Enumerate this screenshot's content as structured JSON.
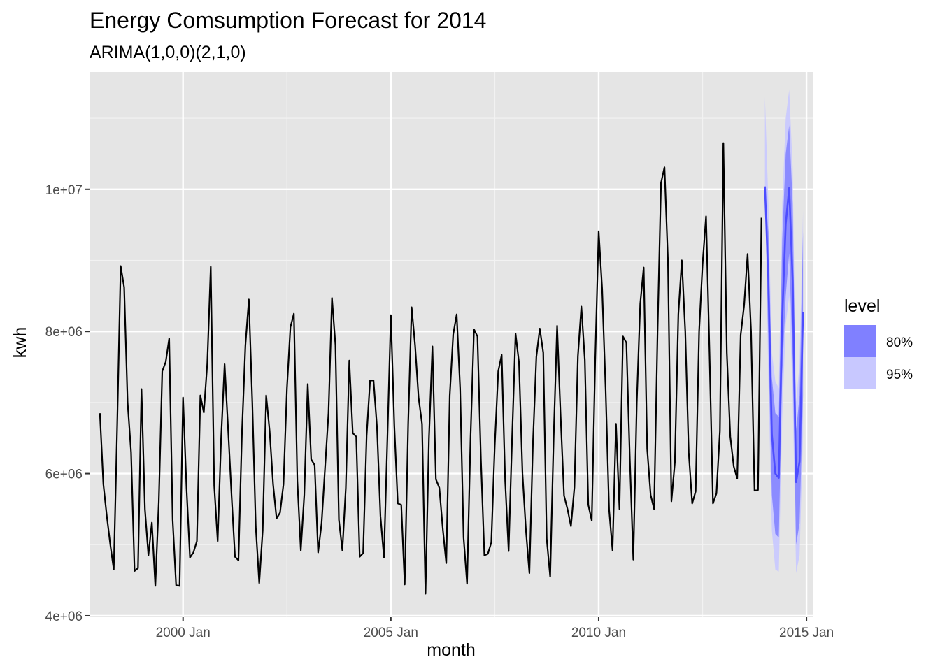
{
  "chart_data": {
    "type": "line",
    "title": "Energy Comsumption Forecast for 2014",
    "subtitle": "ARIMA(1,0,0)(2,1,0)",
    "xlabel": "month",
    "ylabel": "kwh",
    "x_ticks": [
      "2000 Jan",
      "2005 Jan",
      "2010 Jan",
      "2015 Jan"
    ],
    "y_ticks": [
      "4e+06",
      "6e+06",
      "8e+06",
      "1e+07"
    ],
    "ylim": [
      3980000,
      11650000
    ],
    "xlim": [
      "1997-10",
      "2015-03"
    ],
    "grid": true,
    "legend": {
      "title": "level",
      "position": "right",
      "entries": [
        {
          "label": "80%",
          "color": "#8080ff"
        },
        {
          "label": "95%",
          "color": "#c8c8ff"
        }
      ]
    },
    "series": [
      {
        "start": "1998-01",
        "color": "#000000",
        "values": [
          6850000,
          5850000,
          5400000,
          5000000,
          4650000,
          6700000,
          8920000,
          8620000,
          7000000,
          6300000,
          4630000,
          4670000,
          7190000,
          5500000,
          4850000,
          5310000,
          4420000,
          5600000,
          7440000,
          7570000,
          7900000,
          5350000,
          4430000,
          4420000,
          7070000,
          5800000,
          4820000,
          4890000,
          5050000,
          7100000,
          6860000,
          7550000,
          8910000,
          5830000,
          5050000,
          6500000,
          7540000,
          6640000,
          5700000,
          4830000,
          4780000,
          6560000,
          7800000,
          8450000,
          7000000,
          5250000,
          4460000,
          5200000,
          7100000,
          6600000,
          5850000,
          5370000,
          5450000,
          5850000,
          7200000,
          8060000,
          8250000,
          5900000,
          4920000,
          5700000,
          7260000,
          6200000,
          6120000,
          4890000,
          5300000,
          6080000,
          6850000,
          8470000,
          7810000,
          5350000,
          4920000,
          5800000,
          7590000,
          6570000,
          6520000,
          4830000,
          4880000,
          6530000,
          7310000,
          7310000,
          6650000,
          5400000,
          4820000,
          6500000,
          8230000,
          6670000,
          5580000,
          5560000,
          4440000,
          6700000,
          8340000,
          7800000,
          7070000,
          6700000,
          4310000,
          6500000,
          7790000,
          5920000,
          5800000,
          5220000,
          4740000,
          7100000,
          7960000,
          8240000,
          7200000,
          5100000,
          4450000,
          6500000,
          8030000,
          7930000,
          6200000,
          4850000,
          4870000,
          5030000,
          6400000,
          7440000,
          7670000,
          5900000,
          4910000,
          6500000,
          7970000,
          7560000,
          6000000,
          5200000,
          4600000,
          6400000,
          7640000,
          8040000,
          7700000,
          5080000,
          4550000,
          6500000,
          8080000,
          6820000,
          5690000,
          5500000,
          5260000,
          5810000,
          7650000,
          8350000,
          7600000,
          5560000,
          5340000,
          7600000,
          9410000,
          8600000,
          7200000,
          5500000,
          4920000,
          6700000,
          5500000,
          7930000,
          7840000,
          6200000,
          4790000,
          7000000,
          8390000,
          8900000,
          6350000,
          5700000,
          5500000,
          8000000,
          10090000,
          10310000,
          9000000,
          5610000,
          6160000,
          8240000,
          9000000,
          8000000,
          6300000,
          5580000,
          5750000,
          8000000,
          8950000,
          9620000,
          7700000,
          5580000,
          5720000,
          6600000,
          10650000,
          7700000,
          6520000,
          6100000,
          5930000,
          7950000,
          8370000,
          9090000,
          8000000,
          5760000,
          5770000,
          9600000
        ]
      },
      {
        "name": "forecast",
        "start": "2014-01",
        "color": "#4d4dff",
        "values": [
          10040000,
          8700000,
          6550000,
          6000000,
          5940000,
          8200000,
          9510000,
          10020000,
          8720000,
          5880000,
          6170000,
          8270000
        ],
        "lo80": [
          10040000,
          7800000,
          5700000,
          5150000,
          5100000,
          7400000,
          8500000,
          9100000,
          7600000,
          5000000,
          5300000,
          7100000
        ],
        "hi80": [
          10040000,
          9400000,
          7350000,
          6850000,
          6800000,
          9300000,
          10500000,
          10900000,
          9800000,
          6600000,
          7100000,
          9400000
        ],
        "lo95": [
          10040000,
          7300000,
          5200000,
          4650000,
          4620000,
          6800000,
          8100000,
          8500000,
          7100000,
          4600000,
          4850000,
          6550000
        ],
        "hi95": [
          11300000,
          9800000,
          7700000,
          7300000,
          7200000,
          9800000,
          11000000,
          11400000,
          10300000,
          7000000,
          7550000,
          9700000
        ]
      }
    ]
  }
}
